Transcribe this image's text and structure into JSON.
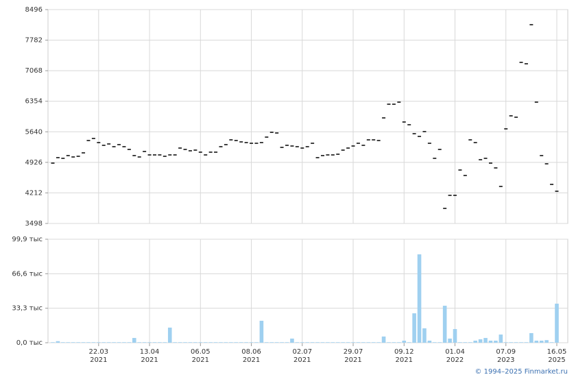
{
  "chart_data": [
    {
      "type": "tick",
      "color": "#000000",
      "grid": true,
      "ylim": [
        3498,
        8496
      ],
      "yticks": [
        3498,
        4212,
        4926,
        5640,
        6354,
        7068,
        7782,
        8496
      ],
      "values": [
        4908,
        5036,
        5020,
        5084,
        5052,
        5068,
        5148,
        5436,
        5484,
        5388,
        5324,
        5356,
        5292,
        5340,
        5292,
        5228,
        5084,
        5052,
        5180,
        5100,
        5100,
        5100,
        5068,
        5100,
        5100,
        5260,
        5228,
        5196,
        5212,
        5164,
        5100,
        5164,
        5164,
        5292,
        5340,
        5452,
        5436,
        5404,
        5388,
        5372,
        5372,
        5388,
        5516,
        5628,
        5612,
        5276,
        5324,
        5308,
        5292,
        5260,
        5292,
        5372,
        5036,
        5084,
        5100,
        5100,
        5116,
        5212,
        5260,
        5308,
        5372,
        5324,
        5452,
        5452,
        5436,
        5965,
        6285,
        6285,
        6333,
        5869,
        5805,
        5596,
        5532,
        5645,
        5372,
        5020,
        5228,
        3850,
        4155,
        4155,
        4747,
        4619,
        5452,
        5388,
        4988,
        5020,
        4908,
        4796,
        4363,
        5709,
        6013,
        5981,
        7262,
        7230,
        8143,
        6333,
        5084,
        4892,
        4411,
        4251
      ]
    },
    {
      "type": "bar",
      "color": "#9fd0f0",
      "grid": true,
      "ylim": [
        0,
        99.9
      ],
      "yticks": [
        {
          "value": 0,
          "label": "0,0 тыс"
        },
        {
          "value": 33.3,
          "label": "33,3 тыс"
        },
        {
          "value": 66.6,
          "label": "66,6 тыс"
        },
        {
          "value": 99.9,
          "label": "99,9 тыс"
        }
      ],
      "categories": [
        null,
        null,
        null,
        null,
        null,
        null,
        null,
        null,
        null,
        "22.03\n2021",
        null,
        null,
        null,
        null,
        null,
        null,
        null,
        null,
        null,
        "13.04\n2021",
        null,
        null,
        null,
        null,
        null,
        null,
        null,
        null,
        null,
        "06.05\n2021",
        null,
        null,
        null,
        null,
        null,
        null,
        null,
        null,
        null,
        "08.06\n2021",
        null,
        null,
        null,
        null,
        null,
        null,
        null,
        null,
        null,
        "02.07\n2021",
        null,
        null,
        null,
        null,
        null,
        null,
        null,
        null,
        null,
        "29.07\n2021",
        null,
        null,
        null,
        null,
        null,
        null,
        null,
        null,
        null,
        "09.12\n2021",
        null,
        null,
        null,
        null,
        null,
        null,
        null,
        null,
        null,
        "01.04\n2022",
        null,
        null,
        null,
        null,
        null,
        null,
        null,
        null,
        null,
        "07.09\n2023",
        null,
        null,
        null,
        null,
        null,
        null,
        null,
        null,
        null,
        "16.05\n2025"
      ],
      "values": [
        0.5,
        1.5,
        0.5,
        0.5,
        0.5,
        0.5,
        0.5,
        0.5,
        0.5,
        0.5,
        0.5,
        0.5,
        0.5,
        0.5,
        0.5,
        0.5,
        4.6,
        0.5,
        0.5,
        0.5,
        0.5,
        0.5,
        0.5,
        14.6,
        0.5,
        0.5,
        0.5,
        0.5,
        0.5,
        0.5,
        0.5,
        0.5,
        0.5,
        0.5,
        0.5,
        0.5,
        0.5,
        0.5,
        0.5,
        0.5,
        0.5,
        21.2,
        0.5,
        0.5,
        0.5,
        0.5,
        0.5,
        4,
        0.5,
        0.5,
        0.5,
        0.5,
        0.5,
        0.5,
        0.5,
        0.5,
        0.5,
        0.5,
        0.5,
        0.5,
        0.5,
        0.5,
        0.5,
        0.5,
        0.5,
        6,
        0.5,
        0.5,
        0.5,
        2,
        0.5,
        28.4,
        85.3,
        13.9,
        2,
        0.5,
        0.5,
        35.7,
        4,
        13.2,
        0.5,
        0.5,
        0.5,
        2,
        3.3,
        4.6,
        2,
        2,
        7.9,
        0.5,
        0.5,
        0.5,
        0.5,
        0.5,
        9.3,
        2,
        2,
        2.5,
        0.5,
        37.7
      ]
    }
  ],
  "credit": "© 1994–2025 Finmarket.ru"
}
